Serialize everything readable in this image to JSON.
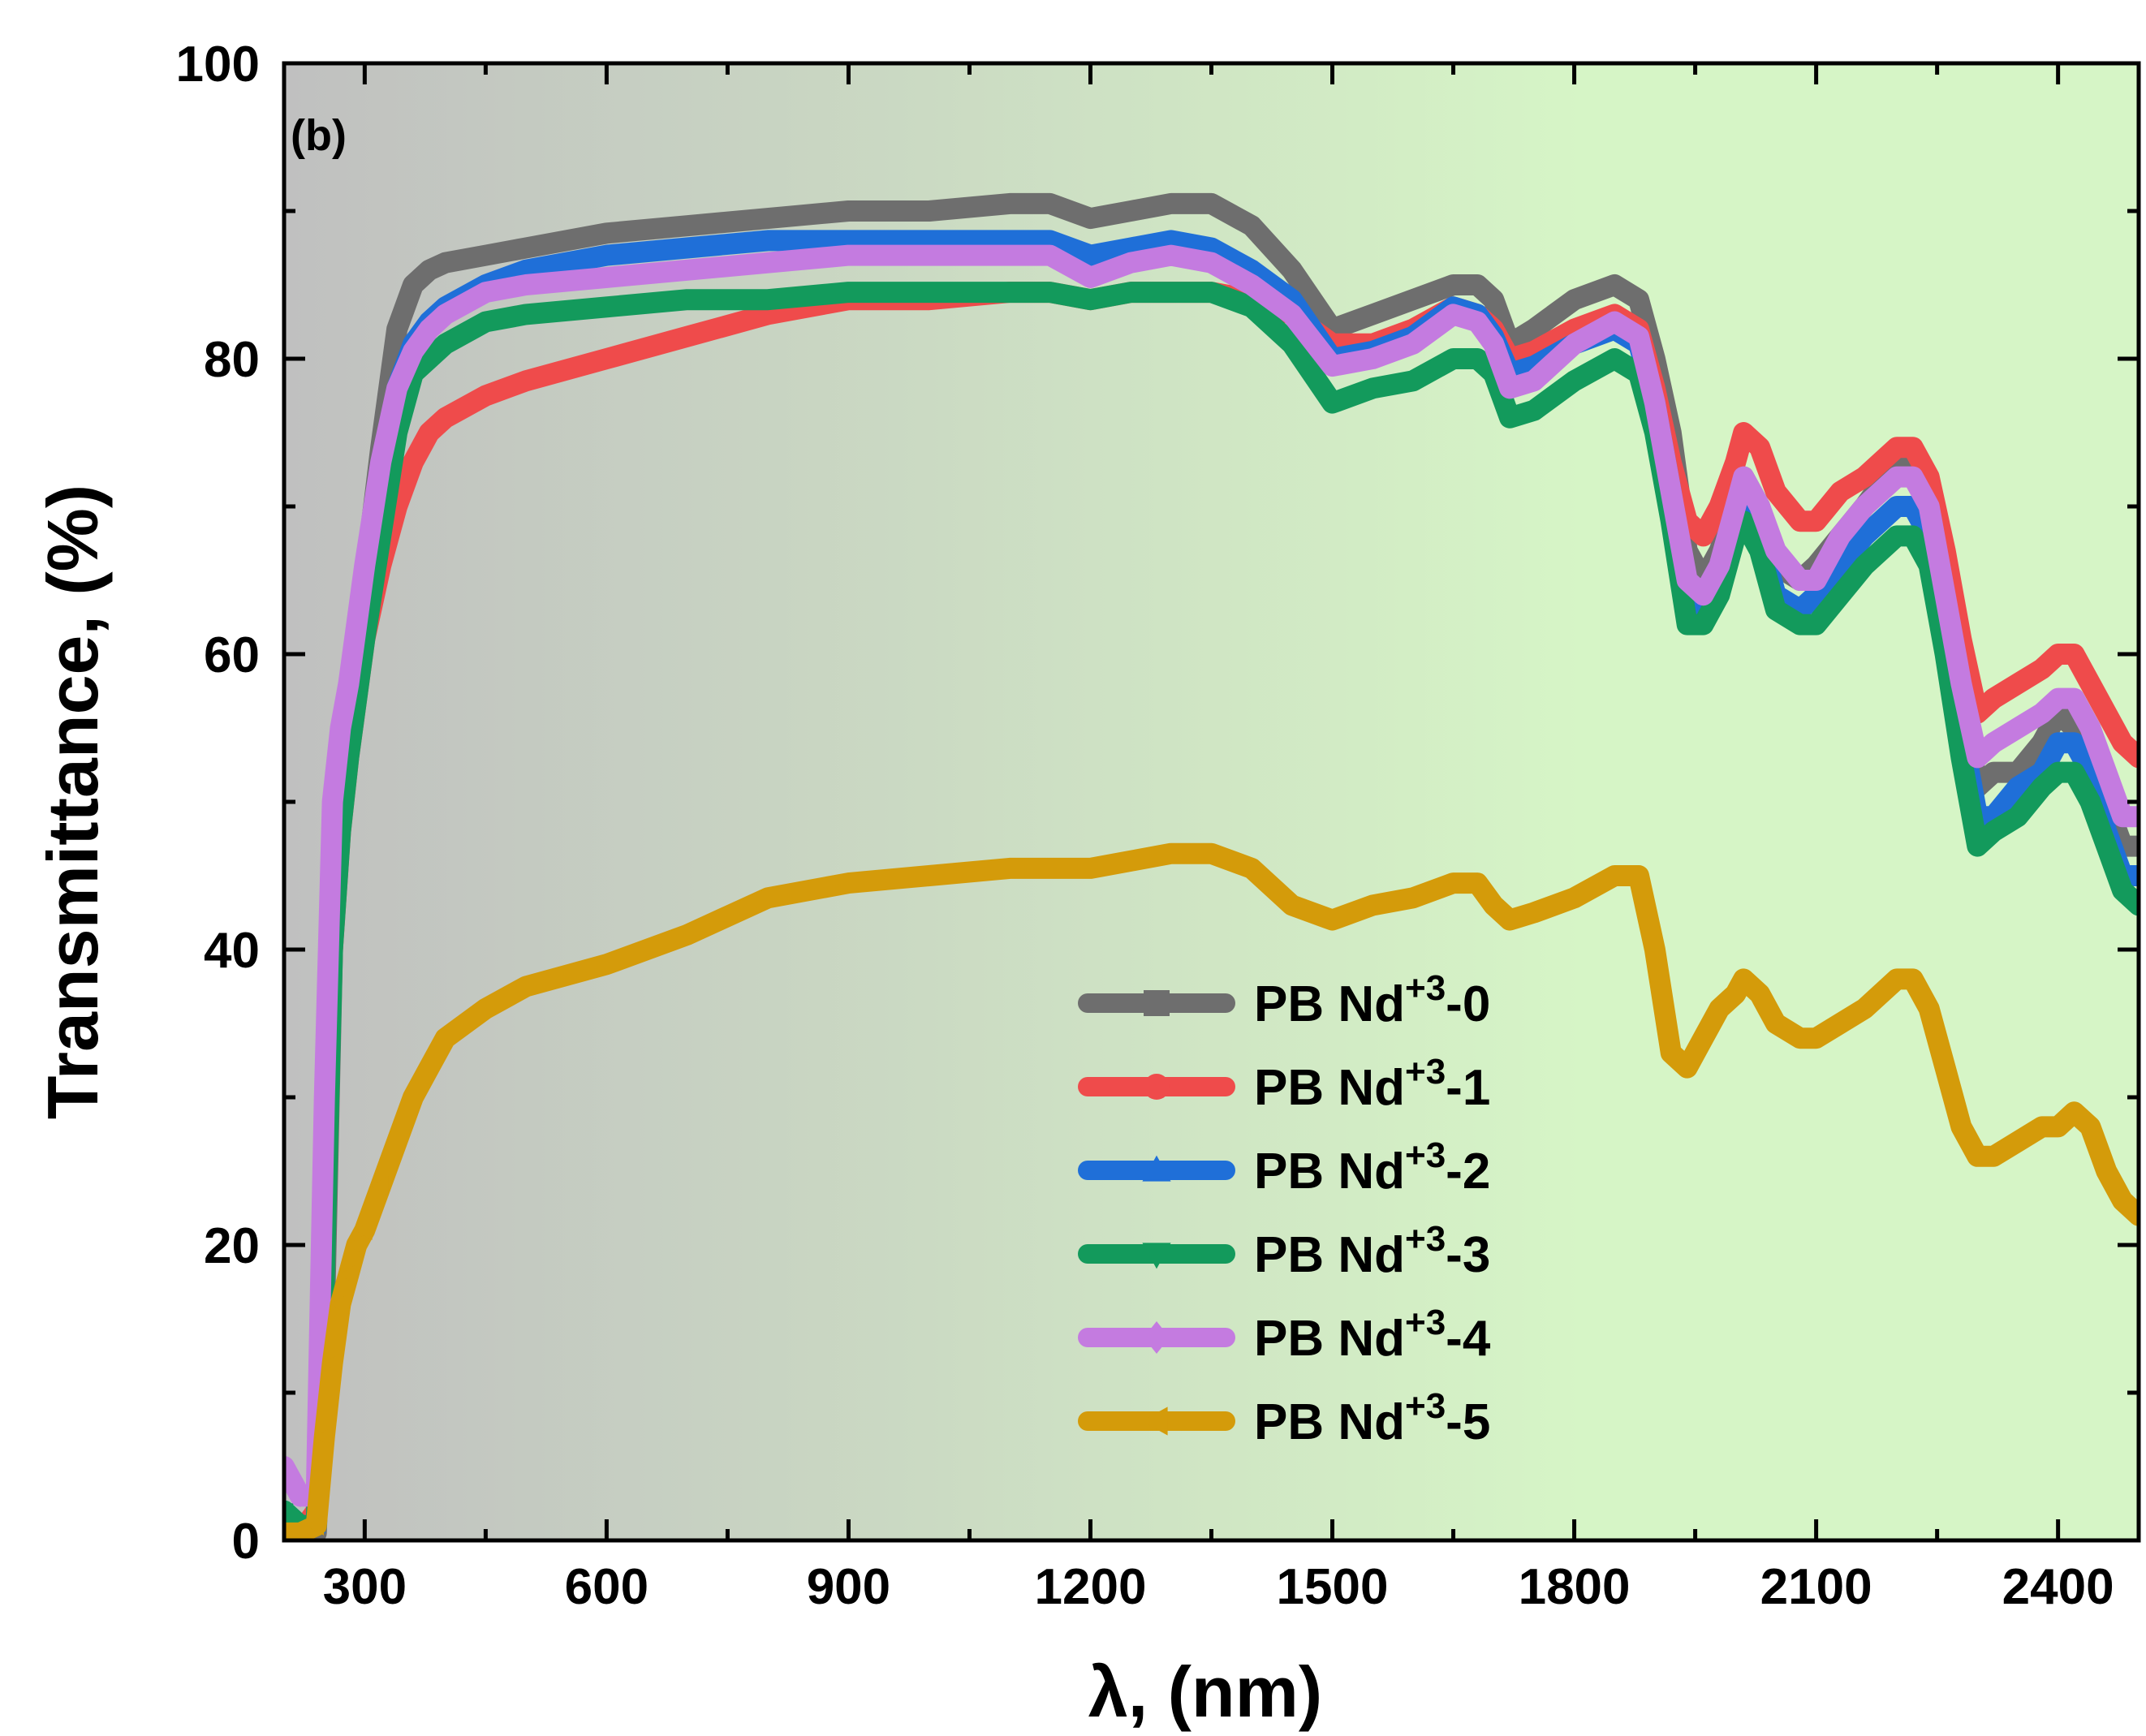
{
  "chart_data": {
    "type": "line",
    "panel_label": "(b)",
    "xlabel": "λ, (nm)",
    "ylabel": "Transmittance, (%)",
    "xlim": [
      200,
      2500
    ],
    "ylim": [
      0,
      100
    ],
    "xticks": [
      300,
      600,
      900,
      1200,
      1500,
      1800,
      2100,
      2400
    ],
    "yticks": [
      0,
      20,
      40,
      60,
      80,
      100
    ],
    "legend_position": "lower-center",
    "background_gradient": [
      "#c0c0c0",
      "#d6f5c6"
    ],
    "series": [
      {
        "name": "PB Nd+3-0",
        "prefix": "PB Nd",
        "sup": "+3",
        "suffix": "-0",
        "color": "#6e6e6e",
        "marker": "square",
        "x": [
          200,
          220,
          240,
          250,
          260,
          270,
          280,
          290,
          300,
          320,
          340,
          360,
          380,
          400,
          450,
          500,
          600,
          700,
          800,
          900,
          1000,
          1100,
          1150,
          1200,
          1250,
          1300,
          1350,
          1400,
          1450,
          1500,
          1550,
          1600,
          1650,
          1680,
          1700,
          1720,
          1750,
          1800,
          1850,
          1880,
          1900,
          1920,
          1940,
          1960,
          1980,
          2000,
          2010,
          2030,
          2050,
          2080,
          2100,
          2130,
          2160,
          2200,
          2220,
          2240,
          2260,
          2280,
          2300,
          2320,
          2350,
          2380,
          2400,
          2420,
          2440,
          2460,
          2480,
          2500
        ],
        "y": [
          1,
          0.5,
          0.5,
          15,
          40,
          50,
          55,
          60,
          65,
          74,
          82,
          85,
          86,
          86.5,
          87,
          87.5,
          88.5,
          89,
          89.5,
          90,
          90,
          90.5,
          90.5,
          89.5,
          90,
          90.5,
          90.5,
          89,
          86,
          82,
          83,
          84,
          85,
          85,
          84,
          81,
          82,
          84,
          85,
          84,
          80,
          75,
          67,
          65,
          67,
          70,
          72,
          70,
          66,
          65,
          66,
          68,
          70,
          73,
          73,
          71,
          65,
          58,
          51,
          52,
          52,
          54,
          56,
          55,
          53,
          50,
          47,
          47
        ]
      },
      {
        "name": "PB Nd+3-1",
        "prefix": "PB Nd",
        "sup": "+3",
        "suffix": "-1",
        "color": "#ef4b4b",
        "marker": "circle",
        "x": [
          200,
          220,
          240,
          250,
          260,
          270,
          280,
          290,
          300,
          320,
          340,
          360,
          380,
          400,
          450,
          500,
          600,
          700,
          800,
          900,
          1000,
          1100,
          1150,
          1200,
          1250,
          1300,
          1350,
          1400,
          1450,
          1500,
          1550,
          1600,
          1650,
          1680,
          1700,
          1720,
          1750,
          1800,
          1850,
          1880,
          1900,
          1920,
          1940,
          1960,
          1980,
          2000,
          2010,
          2030,
          2050,
          2080,
          2100,
          2130,
          2160,
          2200,
          2220,
          2240,
          2260,
          2280,
          2300,
          2320,
          2350,
          2380,
          2400,
          2420,
          2440,
          2460,
          2480,
          2500
        ],
        "y": [
          1,
          0.5,
          2,
          25,
          40,
          48,
          53,
          57,
          61,
          66,
          70,
          73,
          75,
          76,
          77.5,
          78.5,
          80,
          81.5,
          83,
          84,
          84,
          84.5,
          84.5,
          84,
          84.5,
          84.5,
          84.5,
          84,
          83,
          81,
          81,
          82,
          83.5,
          83,
          82,
          80,
          80.5,
          82,
          83,
          82,
          78,
          73,
          69,
          68,
          70,
          73,
          75,
          74,
          71,
          69,
          69,
          71,
          72,
          74,
          74,
          72,
          67,
          61,
          56,
          57,
          58,
          59,
          60,
          60,
          58,
          56,
          54,
          53
        ]
      },
      {
        "name": "PB Nd+3-2",
        "prefix": "PB Nd",
        "sup": "+3",
        "suffix": "-2",
        "color": "#1f6fd8",
        "marker": "triangle-up",
        "x": [
          200,
          220,
          240,
          250,
          260,
          270,
          280,
          290,
          300,
          320,
          340,
          360,
          380,
          400,
          450,
          500,
          600,
          700,
          800,
          900,
          1000,
          1100,
          1150,
          1200,
          1250,
          1300,
          1350,
          1400,
          1450,
          1500,
          1550,
          1600,
          1650,
          1680,
          1700,
          1720,
          1750,
          1800,
          1850,
          1880,
          1900,
          1920,
          1940,
          1960,
          1980,
          2000,
          2010,
          2030,
          2050,
          2080,
          2100,
          2130,
          2160,
          2200,
          2220,
          2240,
          2260,
          2280,
          2300,
          2320,
          2350,
          2380,
          2400,
          2420,
          2440,
          2460,
          2480,
          2500
        ],
        "y": [
          2,
          1,
          1,
          20,
          45,
          52,
          57,
          61,
          64,
          72,
          78,
          81,
          82.5,
          83.5,
          85,
          86,
          87,
          87.5,
          88,
          88,
          88,
          88,
          88,
          87,
          87.5,
          88,
          87.5,
          86,
          84,
          80,
          80.5,
          81.5,
          83.5,
          83,
          81.5,
          79,
          79.5,
          81,
          82,
          81,
          77,
          71,
          64,
          63,
          65,
          69,
          70,
          68,
          64,
          63,
          64,
          66,
          68,
          70,
          70,
          68,
          62,
          55,
          49,
          49,
          51,
          52,
          54,
          54,
          52,
          48,
          45,
          45
        ]
      },
      {
        "name": "PB Nd+3-3",
        "prefix": "PB Nd",
        "sup": "+3",
        "suffix": "-3",
        "color": "#139a5c",
        "marker": "triangle-down",
        "x": [
          200,
          220,
          240,
          250,
          260,
          270,
          280,
          290,
          300,
          320,
          340,
          360,
          380,
          400,
          450,
          500,
          600,
          700,
          800,
          900,
          1000,
          1100,
          1150,
          1200,
          1250,
          1300,
          1350,
          1400,
          1450,
          1500,
          1550,
          1600,
          1650,
          1680,
          1700,
          1720,
          1750,
          1800,
          1850,
          1880,
          1900,
          1920,
          1940,
          1960,
          1980,
          2000,
          2010,
          2030,
          2050,
          2080,
          2100,
          2130,
          2160,
          2200,
          2220,
          2240,
          2260,
          2280,
          2300,
          2320,
          2350,
          2380,
          2400,
          2420,
          2440,
          2460,
          2480,
          2500
        ],
        "y": [
          2,
          1,
          1,
          18,
          40,
          48,
          53,
          57,
          61,
          68,
          75,
          79,
          80,
          81,
          82.5,
          83,
          83.5,
          84,
          84,
          84.5,
          84.5,
          84.5,
          84.5,
          84,
          84.5,
          84.5,
          84.5,
          83.5,
          81,
          77,
          78,
          78.5,
          80,
          80,
          79,
          76,
          76.5,
          78.5,
          80,
          79,
          75,
          69,
          62,
          62,
          64,
          68,
          69,
          67,
          63,
          62,
          62,
          64,
          66,
          68,
          68,
          66,
          60,
          53,
          47,
          48,
          49,
          51,
          52,
          52,
          50,
          47,
          44,
          43
        ]
      },
      {
        "name": "PB Nd+3-4",
        "prefix": "PB Nd",
        "sup": "+3",
        "suffix": "-4",
        "color": "#c47be0",
        "marker": "diamond",
        "x": [
          200,
          220,
          240,
          250,
          260,
          270,
          280,
          290,
          300,
          320,
          340,
          360,
          380,
          400,
          450,
          500,
          600,
          700,
          800,
          900,
          1000,
          1100,
          1150,
          1200,
          1250,
          1300,
          1350,
          1400,
          1450,
          1500,
          1550,
          1600,
          1650,
          1680,
          1700,
          1720,
          1750,
          1800,
          1850,
          1880,
          1900,
          1920,
          1940,
          1960,
          1980,
          2000,
          2010,
          2030,
          2050,
          2080,
          2100,
          2130,
          2160,
          2200,
          2220,
          2240,
          2260,
          2280,
          2300,
          2320,
          2350,
          2380,
          2400,
          2420,
          2440,
          2460,
          2480,
          2500
        ],
        "y": [
          5,
          3,
          3,
          30,
          50,
          55,
          58,
          62,
          66,
          73,
          78,
          80.5,
          82,
          83,
          84.5,
          85,
          85.5,
          86,
          86.5,
          87,
          87,
          87,
          87,
          85.5,
          86.5,
          87,
          86.5,
          85,
          83,
          79.5,
          80,
          81,
          83,
          82.5,
          81,
          78,
          78.5,
          81,
          82.5,
          81.5,
          77,
          71,
          65,
          64,
          66,
          70,
          72,
          70,
          67,
          65,
          65,
          68,
          70,
          72,
          72,
          70,
          64,
          58,
          53,
          54,
          55,
          56,
          57,
          57,
          55,
          52,
          49,
          49
        ]
      },
      {
        "name": "PB Nd+3-5",
        "prefix": "PB Nd",
        "sup": "+3",
        "suffix": "-5",
        "color": "#d49b0a",
        "marker": "triangle-left",
        "x": [
          200,
          220,
          240,
          250,
          260,
          270,
          280,
          290,
          300,
          320,
          340,
          360,
          380,
          400,
          450,
          500,
          600,
          700,
          800,
          900,
          1000,
          1100,
          1150,
          1200,
          1250,
          1300,
          1350,
          1400,
          1450,
          1500,
          1550,
          1600,
          1650,
          1680,
          1700,
          1720,
          1750,
          1800,
          1850,
          1880,
          1900,
          1920,
          1940,
          1960,
          1980,
          2000,
          2010,
          2030,
          2050,
          2080,
          2100,
          2130,
          2160,
          2200,
          2220,
          2240,
          2260,
          2280,
          2300,
          2320,
          2350,
          2380,
          2400,
          2420,
          2440,
          2460,
          2480,
          2500
        ],
        "y": [
          0.5,
          0.5,
          1,
          7,
          12,
          16,
          18,
          20,
          21,
          24,
          27,
          30,
          32,
          34,
          36,
          37.5,
          39,
          41,
          43.5,
          44.5,
          45,
          45.5,
          45.5,
          45.5,
          46,
          46.5,
          46.5,
          45.5,
          43,
          42,
          43,
          43.5,
          44.5,
          44.5,
          43,
          42,
          42.5,
          43.5,
          45,
          45,
          40,
          33,
          32,
          34,
          36,
          37,
          38,
          37,
          35,
          34,
          34,
          35,
          36,
          38,
          38,
          36,
          32,
          28,
          26,
          26,
          27,
          28,
          28,
          29,
          28,
          25,
          23,
          22
        ]
      }
    ]
  }
}
